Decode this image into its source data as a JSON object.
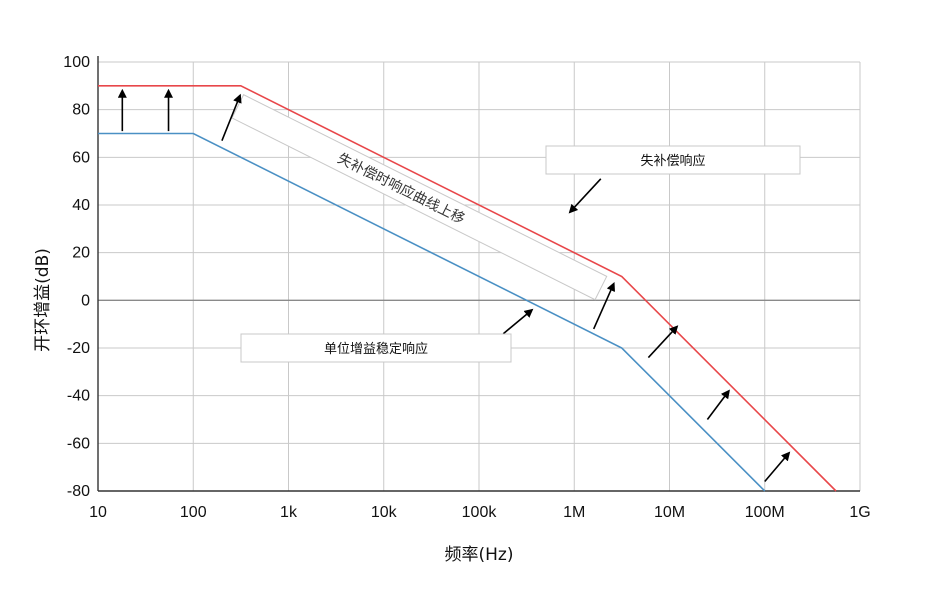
{
  "chart_data": {
    "type": "line",
    "xlabel": "频率(Hz)",
    "ylabel": "开环增益(dB)",
    "x_scale": "log",
    "xlim": [
      10,
      1000000000
    ],
    "ylim": [
      -80,
      100
    ],
    "grid": true,
    "x_ticks": [
      {
        "value": 10,
        "label": "10"
      },
      {
        "value": 100,
        "label": "100"
      },
      {
        "value": 1000,
        "label": "1k"
      },
      {
        "value": 10000,
        "label": "10k"
      },
      {
        "value": 100000,
        "label": "100k"
      },
      {
        "value": 1000000,
        "label": "1M"
      },
      {
        "value": 10000000,
        "label": "10M"
      },
      {
        "value": 100000000,
        "label": "100M"
      },
      {
        "value": 1000000000,
        "label": "1G"
      }
    ],
    "y_ticks": [
      {
        "value": 100,
        "label": "100"
      },
      {
        "value": 80,
        "label": "80"
      },
      {
        "value": 60,
        "label": "60"
      },
      {
        "value": 40,
        "label": "40"
      },
      {
        "value": 20,
        "label": "20"
      },
      {
        "value": 0,
        "label": "0"
      },
      {
        "value": -20,
        "label": "-20"
      },
      {
        "value": -40,
        "label": "-40"
      },
      {
        "value": -60,
        "label": "-60"
      },
      {
        "value": -80,
        "label": "-80"
      }
    ],
    "series": [
      {
        "key": "uncompensated",
        "color": "#e8474a",
        "points": [
          [
            10,
            90
          ],
          [
            316,
            90
          ],
          [
            3160000,
            10
          ],
          [
            560000000,
            -80
          ]
        ]
      },
      {
        "key": "unity-gain-stable",
        "color": "#4a90c4",
        "points": [
          [
            10,
            70
          ],
          [
            100,
            70
          ],
          [
            3160000,
            -20
          ],
          [
            100000000,
            -80
          ]
        ]
      }
    ],
    "annotations": {
      "uncompensated_label": "失补偿响应",
      "unity_gain_label": "单位增益稳定响应",
      "shift_label": "失补偿时响应曲线上移"
    },
    "arrows": [
      {
        "from": [
          18,
          71
        ],
        "to": [
          18,
          88
        ]
      },
      {
        "from": [
          55,
          71
        ],
        "to": [
          55,
          88
        ]
      },
      {
        "from": [
          200,
          67
        ],
        "to": [
          310,
          86
        ]
      },
      {
        "from": [
          1600000,
          -12
        ],
        "to": [
          2600000,
          7
        ]
      },
      {
        "from": [
          6000000,
          -24
        ],
        "to": [
          12000000,
          -11
        ]
      },
      {
        "from": [
          25000000,
          -50
        ],
        "to": [
          42000000,
          -38
        ]
      },
      {
        "from": [
          100000000,
          -76
        ],
        "to": [
          180000000,
          -64
        ]
      },
      {
        "from": [
          1900000,
          51
        ],
        "to": [
          900000,
          37
        ]
      },
      {
        "from": [
          180000,
          -14
        ],
        "to": [
          360000,
          -4
        ]
      }
    ]
  }
}
